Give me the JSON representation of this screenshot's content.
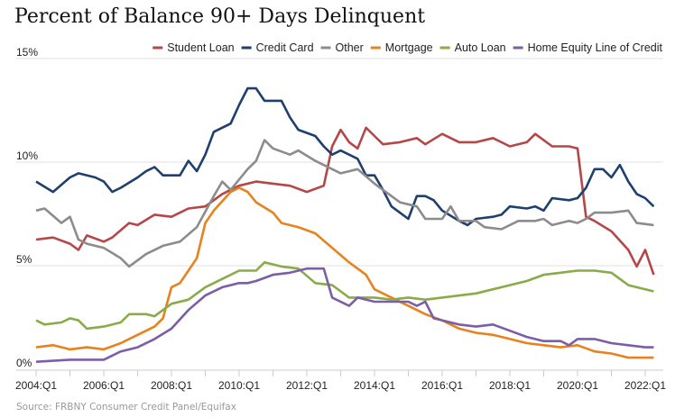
{
  "chart_data": {
    "type": "line",
    "title": "Percent of Balance 90+ Days Delinquent",
    "source": "Source: FRBNY Consumer Credit Panel/Equifax",
    "xlabel": "",
    "ylabel": "",
    "xlim": [
      2004,
      2022.25
    ],
    "ylim": [
      0,
      15
    ],
    "yticks": [
      {
        "v": 0,
        "label": "0%"
      },
      {
        "v": 5,
        "label": "5%"
      },
      {
        "v": 10,
        "label": "10%"
      },
      {
        "v": 15,
        "label": "15%"
      }
    ],
    "xticks": [
      {
        "v": 2004,
        "label": "2004:Q1"
      },
      {
        "v": 2006,
        "label": "2006:Q1"
      },
      {
        "v": 2008,
        "label": "2008:Q1"
      },
      {
        "v": 2010,
        "label": "2010:Q1"
      },
      {
        "v": 2012,
        "label": "2012:Q1"
      },
      {
        "v": 2014,
        "label": "2014:Q1"
      },
      {
        "v": 2016,
        "label": "2016:Q1"
      },
      {
        "v": 2018,
        "label": "2018:Q1"
      },
      {
        "v": 2020,
        "label": "2020:Q1"
      },
      {
        "v": 2022,
        "label": "2022:Q1"
      }
    ],
    "legend_position": "top-right",
    "series": [
      {
        "name": "Student Loan",
        "color": "#b5474a",
        "points": [
          [
            2004,
            6.0
          ],
          [
            2004.5,
            6.1
          ],
          [
            2005,
            5.8
          ],
          [
            2005.25,
            5.5
          ],
          [
            2005.5,
            6.2
          ],
          [
            2006,
            5.9
          ],
          [
            2006.25,
            6.1
          ],
          [
            2006.75,
            6.8
          ],
          [
            2007,
            6.7
          ],
          [
            2007.5,
            7.2
          ],
          [
            2008,
            7.1
          ],
          [
            2008.5,
            7.5
          ],
          [
            2009,
            7.6
          ],
          [
            2009.5,
            8.2
          ],
          [
            2010,
            8.6
          ],
          [
            2010.5,
            8.8
          ],
          [
            2011,
            8.7
          ],
          [
            2011.5,
            8.6
          ],
          [
            2012,
            8.3
          ],
          [
            2012.5,
            8.6
          ],
          [
            2012.75,
            10.5
          ],
          [
            2013,
            11.3
          ],
          [
            2013.25,
            10.7
          ],
          [
            2013.5,
            10.4
          ],
          [
            2013.75,
            11.4
          ],
          [
            2014,
            11.0
          ],
          [
            2014.25,
            10.6
          ],
          [
            2014.75,
            10.7
          ],
          [
            2015.25,
            10.9
          ],
          [
            2015.5,
            10.6
          ],
          [
            2016,
            11.1
          ],
          [
            2016.5,
            10.7
          ],
          [
            2017,
            10.7
          ],
          [
            2017.5,
            10.9
          ],
          [
            2018,
            10.5
          ],
          [
            2018.5,
            10.7
          ],
          [
            2018.75,
            11.1
          ],
          [
            2019.25,
            10.5
          ],
          [
            2019.75,
            10.5
          ],
          [
            2020,
            10.4
          ],
          [
            2020.25,
            7.1
          ],
          [
            2020.5,
            6.9
          ],
          [
            2021,
            6.4
          ],
          [
            2021.5,
            5.5
          ],
          [
            2021.75,
            4.7
          ],
          [
            2022,
            5.5
          ],
          [
            2022.25,
            4.3
          ]
        ]
      },
      {
        "name": "Credit Card",
        "color": "#1f3f6d",
        "points": [
          [
            2004,
            8.8
          ],
          [
            2004.5,
            8.3
          ],
          [
            2005,
            9.0
          ],
          [
            2005.25,
            9.2
          ],
          [
            2005.75,
            9.0
          ],
          [
            2006,
            8.8
          ],
          [
            2006.25,
            8.3
          ],
          [
            2006.5,
            8.5
          ],
          [
            2007,
            9.0
          ],
          [
            2007.25,
            9.3
          ],
          [
            2007.5,
            9.5
          ],
          [
            2007.75,
            9.1
          ],
          [
            2008.25,
            9.1
          ],
          [
            2008.5,
            9.8
          ],
          [
            2008.75,
            9.3
          ],
          [
            2009,
            10.1
          ],
          [
            2009.25,
            11.2
          ],
          [
            2009.75,
            11.6
          ],
          [
            2010,
            12.5
          ],
          [
            2010.25,
            13.3
          ],
          [
            2010.5,
            13.3
          ],
          [
            2010.75,
            12.7
          ],
          [
            2011.25,
            12.7
          ],
          [
            2011.5,
            11.9
          ],
          [
            2011.75,
            11.3
          ],
          [
            2012.25,
            11.0
          ],
          [
            2012.5,
            10.5
          ],
          [
            2012.75,
            10.1
          ],
          [
            2013,
            10.3
          ],
          [
            2013.5,
            9.9
          ],
          [
            2013.75,
            9.1
          ],
          [
            2014,
            9.1
          ],
          [
            2014.25,
            8.4
          ],
          [
            2014.5,
            7.6
          ],
          [
            2014.75,
            7.3
          ],
          [
            2015,
            7.0
          ],
          [
            2015.25,
            8.1
          ],
          [
            2015.5,
            8.1
          ],
          [
            2015.75,
            7.9
          ],
          [
            2016,
            7.4
          ],
          [
            2016.5,
            6.9
          ],
          [
            2016.75,
            6.7
          ],
          [
            2017,
            7.0
          ],
          [
            2017.5,
            7.1
          ],
          [
            2017.75,
            7.2
          ],
          [
            2018,
            7.6
          ],
          [
            2018.5,
            7.5
          ],
          [
            2018.75,
            7.6
          ],
          [
            2019,
            7.4
          ],
          [
            2019.25,
            8.0
          ],
          [
            2019.75,
            7.9
          ],
          [
            2020,
            8.0
          ],
          [
            2020.25,
            8.5
          ],
          [
            2020.5,
            9.4
          ],
          [
            2020.75,
            9.4
          ],
          [
            2021,
            9.0
          ],
          [
            2021.25,
            9.6
          ],
          [
            2021.5,
            8.8
          ],
          [
            2021.75,
            8.2
          ],
          [
            2022,
            8.0
          ],
          [
            2022.25,
            7.6
          ]
        ]
      },
      {
        "name": "Other",
        "color": "#8c8c8c",
        "points": [
          [
            2004,
            7.4
          ],
          [
            2004.25,
            7.5
          ],
          [
            2004.75,
            6.8
          ],
          [
            2005,
            7.1
          ],
          [
            2005.25,
            6.0
          ],
          [
            2005.5,
            5.8
          ],
          [
            2006,
            5.6
          ],
          [
            2006.5,
            5.1
          ],
          [
            2006.75,
            4.7
          ],
          [
            2007.25,
            5.3
          ],
          [
            2007.75,
            5.7
          ],
          [
            2008.25,
            5.9
          ],
          [
            2008.75,
            6.6
          ],
          [
            2009.25,
            8.1
          ],
          [
            2009.5,
            8.8
          ],
          [
            2009.75,
            8.4
          ],
          [
            2010.25,
            9.4
          ],
          [
            2010.5,
            9.8
          ],
          [
            2010.75,
            10.8
          ],
          [
            2011,
            10.4
          ],
          [
            2011.5,
            10.1
          ],
          [
            2011.75,
            10.3
          ],
          [
            2012.25,
            9.8
          ],
          [
            2012.75,
            9.4
          ],
          [
            2013,
            9.2
          ],
          [
            2013.5,
            9.4
          ],
          [
            2014,
            8.7
          ],
          [
            2014.5,
            8.1
          ],
          [
            2014.75,
            7.8
          ],
          [
            2015.25,
            7.6
          ],
          [
            2015.5,
            7.0
          ],
          [
            2016,
            7.0
          ],
          [
            2016.25,
            7.6
          ],
          [
            2016.5,
            6.9
          ],
          [
            2017,
            6.9
          ],
          [
            2017.25,
            6.6
          ],
          [
            2017.75,
            6.5
          ],
          [
            2018.25,
            6.9
          ],
          [
            2018.75,
            6.9
          ],
          [
            2019,
            7.0
          ],
          [
            2019.25,
            6.7
          ],
          [
            2019.75,
            6.9
          ],
          [
            2020,
            6.8
          ],
          [
            2020.25,
            7.0
          ],
          [
            2020.5,
            7.3
          ],
          [
            2021,
            7.3
          ],
          [
            2021.5,
            7.4
          ],
          [
            2021.75,
            6.8
          ],
          [
            2022.25,
            6.7
          ]
        ]
      },
      {
        "name": "Mortgage",
        "color": "#e8821e",
        "points": [
          [
            2004,
            0.8
          ],
          [
            2004.5,
            0.9
          ],
          [
            2005,
            0.7
          ],
          [
            2005.5,
            0.8
          ],
          [
            2006,
            0.7
          ],
          [
            2006.5,
            1.0
          ],
          [
            2007,
            1.4
          ],
          [
            2007.5,
            1.8
          ],
          [
            2007.75,
            2.2
          ],
          [
            2008,
            3.7
          ],
          [
            2008.25,
            3.9
          ],
          [
            2008.5,
            4.5
          ],
          [
            2008.75,
            5.1
          ],
          [
            2009,
            6.8
          ],
          [
            2009.25,
            7.4
          ],
          [
            2009.75,
            8.3
          ],
          [
            2010,
            8.5
          ],
          [
            2010.25,
            8.3
          ],
          [
            2010.5,
            7.8
          ],
          [
            2011,
            7.3
          ],
          [
            2011.25,
            6.8
          ],
          [
            2011.75,
            6.6
          ],
          [
            2012.25,
            6.3
          ],
          [
            2012.75,
            5.6
          ],
          [
            2013.25,
            4.9
          ],
          [
            2013.75,
            4.3
          ],
          [
            2014,
            3.6
          ],
          [
            2014.5,
            3.2
          ],
          [
            2015,
            2.8
          ],
          [
            2015.5,
            2.4
          ],
          [
            2016,
            2.1
          ],
          [
            2016.5,
            1.7
          ],
          [
            2017,
            1.5
          ],
          [
            2017.5,
            1.4
          ],
          [
            2018,
            1.2
          ],
          [
            2018.5,
            1.0
          ],
          [
            2019,
            0.9
          ],
          [
            2019.5,
            0.8
          ],
          [
            2020,
            0.9
          ],
          [
            2020.5,
            0.6
          ],
          [
            2021,
            0.5
          ],
          [
            2021.5,
            0.3
          ],
          [
            2022.25,
            0.3
          ]
        ]
      },
      {
        "name": "Auto Loan",
        "color": "#8aab4a",
        "points": [
          [
            2004,
            2.1
          ],
          [
            2004.25,
            1.9
          ],
          [
            2004.75,
            2.0
          ],
          [
            2005,
            2.2
          ],
          [
            2005.25,
            2.1
          ],
          [
            2005.5,
            1.7
          ],
          [
            2006,
            1.8
          ],
          [
            2006.5,
            2.0
          ],
          [
            2006.75,
            2.4
          ],
          [
            2007.25,
            2.4
          ],
          [
            2007.5,
            2.3
          ],
          [
            2008,
            2.9
          ],
          [
            2008.5,
            3.1
          ],
          [
            2009,
            3.7
          ],
          [
            2009.5,
            4.1
          ],
          [
            2010,
            4.5
          ],
          [
            2010.5,
            4.5
          ],
          [
            2010.75,
            4.9
          ],
          [
            2011.25,
            4.7
          ],
          [
            2011.75,
            4.6
          ],
          [
            2012.25,
            3.9
          ],
          [
            2012.75,
            3.8
          ],
          [
            2013.25,
            3.2
          ],
          [
            2014,
            3.2
          ],
          [
            2014.5,
            3.1
          ],
          [
            2015,
            3.2
          ],
          [
            2015.5,
            3.1
          ],
          [
            2016,
            3.2
          ],
          [
            2016.5,
            3.3
          ],
          [
            2017,
            3.4
          ],
          [
            2017.5,
            3.6
          ],
          [
            2018,
            3.8
          ],
          [
            2018.5,
            4.0
          ],
          [
            2019,
            4.3
          ],
          [
            2019.5,
            4.4
          ],
          [
            2020,
            4.5
          ],
          [
            2020.5,
            4.5
          ],
          [
            2021,
            4.4
          ],
          [
            2021.5,
            3.8
          ],
          [
            2022.25,
            3.5
          ]
        ]
      },
      {
        "name": "Home Equity Line of Credit",
        "color": "#7b5ea7",
        "points": [
          [
            2004,
            0.1
          ],
          [
            2005,
            0.2
          ],
          [
            2006,
            0.2
          ],
          [
            2006.5,
            0.6
          ],
          [
            2007,
            0.8
          ],
          [
            2007.5,
            1.2
          ],
          [
            2008,
            1.7
          ],
          [
            2008.5,
            2.6
          ],
          [
            2009,
            3.3
          ],
          [
            2009.5,
            3.7
          ],
          [
            2010,
            3.9
          ],
          [
            2010.25,
            3.9
          ],
          [
            2010.5,
            4.0
          ],
          [
            2011,
            4.3
          ],
          [
            2011.5,
            4.4
          ],
          [
            2012,
            4.6
          ],
          [
            2012.5,
            4.6
          ],
          [
            2012.75,
            3.2
          ],
          [
            2013.25,
            2.8
          ],
          [
            2013.5,
            3.2
          ],
          [
            2014,
            3.0
          ],
          [
            2014.5,
            3.0
          ],
          [
            2015,
            3.0
          ],
          [
            2015.25,
            2.8
          ],
          [
            2015.5,
            3.0
          ],
          [
            2015.75,
            2.2
          ],
          [
            2016.5,
            1.9
          ],
          [
            2017,
            1.8
          ],
          [
            2017.5,
            1.9
          ],
          [
            2018,
            1.6
          ],
          [
            2018.5,
            1.3
          ],
          [
            2019,
            1.1
          ],
          [
            2019.5,
            1.1
          ],
          [
            2019.75,
            0.9
          ],
          [
            2020,
            1.2
          ],
          [
            2020.5,
            1.2
          ],
          [
            2021,
            1.0
          ],
          [
            2021.5,
            0.9
          ],
          [
            2022,
            0.8
          ],
          [
            2022.25,
            0.8
          ]
        ]
      }
    ]
  }
}
